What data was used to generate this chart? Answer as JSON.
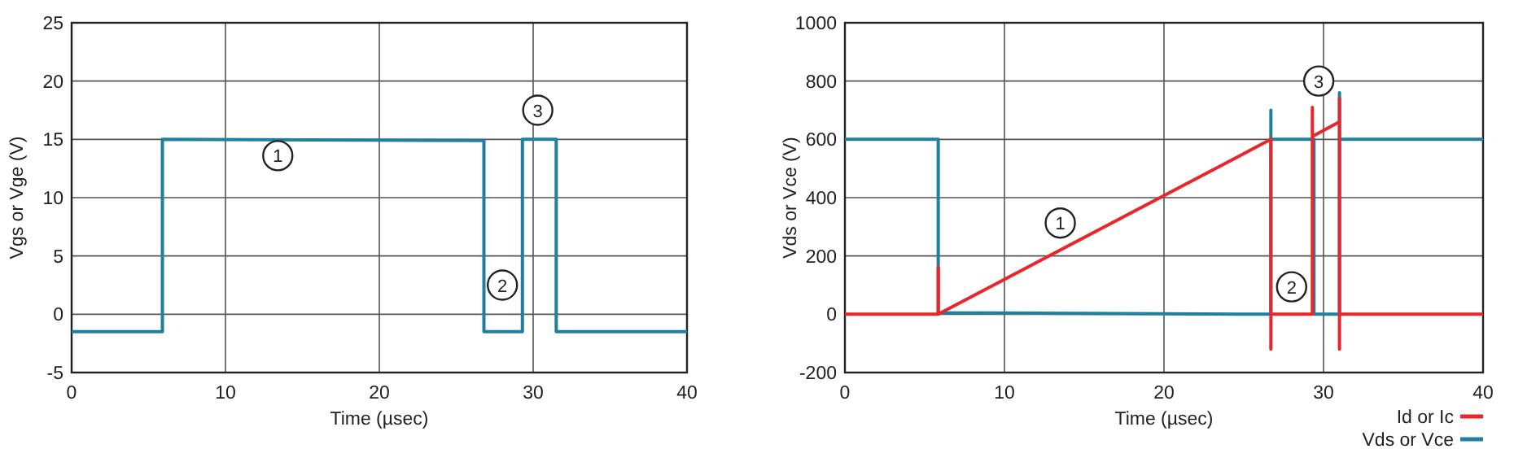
{
  "chart_data": [
    {
      "type": "line",
      "xlabel": "Time (µsec)",
      "ylabel": "Vgs or Vge (V)",
      "xlim": [
        0,
        40
      ],
      "xticks": [
        0,
        10,
        20,
        30,
        40
      ],
      "ylim": [
        -5,
        25
      ],
      "yticks": [
        -5,
        0,
        5,
        10,
        15,
        20,
        25
      ],
      "grid": true,
      "legend": false,
      "marker": "none",
      "line_style": "solid",
      "x": [
        0,
        5.9,
        5.9,
        26.8,
        26.8,
        29.3,
        29.3,
        31.5,
        31.5,
        40
      ],
      "series": [
        {
          "color": "#1f7fa0",
          "values": [
            -1.5,
            -1.5,
            15,
            14.9,
            -1.5,
            -1.5,
            15,
            15,
            -1.5,
            -1.5
          ]
        }
      ],
      "annotations": [
        {
          "text": "1",
          "x": 13.4,
          "y": 13.6
        },
        {
          "text": "2",
          "x": 28,
          "y": 2.5
        },
        {
          "text": "3",
          "x": 30.3,
          "y": 17.5
        }
      ]
    },
    {
      "type": "line",
      "xlabel": "Time (µsec)",
      "ylabel": "Vds or Vce (V)",
      "xlim": [
        0,
        40
      ],
      "xticks": [
        0,
        10,
        20,
        30,
        40
      ],
      "ylim": [
        -200,
        1000
      ],
      "yticks": [
        -200,
        0,
        200,
        400,
        600,
        800,
        1000
      ],
      "grid": true,
      "legend": "bottom right",
      "marker": "none",
      "line_style": "solid",
      "series": [
        {
          "name": "Id or Ic",
          "color": "#e8262b",
          "x": [
            0,
            5.85,
            5.85,
            5.85,
            26.7,
            26.7,
            26.7,
            29.3,
            29.3,
            29.3,
            31.0,
            31.0,
            31.0,
            31.0,
            40
          ],
          "values": [
            0,
            0,
            160,
            0,
            600,
            -120,
            0,
            0,
            710,
            610,
            660,
            740,
            -120,
            0,
            0
          ]
        },
        {
          "name": "Vds or Vce",
          "color": "#1f7fa0",
          "x": [
            0,
            5.85,
            5.85,
            26.7,
            26.7,
            26.7,
            29.4,
            29.4,
            31.0,
            31.0,
            31.0,
            40
          ],
          "values": [
            600,
            600,
            5,
            0,
            700,
            600,
            600,
            0,
            0,
            760,
            600,
            600
          ]
        }
      ],
      "annotations": [
        {
          "text": "1",
          "x": 13.5,
          "y": 313
        },
        {
          "text": "2",
          "x": 28,
          "y": 94
        },
        {
          "text": "3",
          "x": 29.7,
          "y": 800
        }
      ]
    }
  ]
}
